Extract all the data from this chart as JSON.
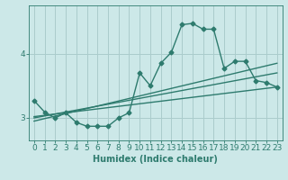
{
  "xlabel": "Humidex (Indice chaleur)",
  "ylabel": "",
  "bg_color": "#cce8e8",
  "grid_color": "#aacccc",
  "line_color": "#2e7b6e",
  "xlim": [
    -0.5,
    23.5
  ],
  "ylim": [
    2.65,
    4.75
  ],
  "yticks": [
    3,
    4
  ],
  "xticks": [
    0,
    1,
    2,
    3,
    4,
    5,
    6,
    7,
    8,
    9,
    10,
    11,
    12,
    13,
    14,
    15,
    16,
    17,
    18,
    19,
    20,
    21,
    22,
    23
  ],
  "series1_x": [
    0,
    1,
    2,
    3,
    4,
    5,
    6,
    7,
    8,
    9,
    10,
    11,
    12,
    13,
    14,
    15,
    16,
    17,
    18,
    19,
    20,
    21,
    22,
    23
  ],
  "series1_y": [
    3.27,
    3.09,
    3.0,
    3.08,
    2.93,
    2.87,
    2.87,
    2.87,
    3.0,
    3.08,
    3.7,
    3.5,
    3.85,
    4.02,
    4.45,
    4.47,
    4.38,
    4.38,
    3.77,
    3.88,
    3.88,
    3.58,
    3.55,
    3.48
  ],
  "series2_x": [
    0,
    23
  ],
  "series2_y": [
    3.02,
    3.48
  ],
  "series3_x": [
    0,
    23
  ],
  "series3_y": [
    3.0,
    3.7
  ],
  "series4_x": [
    0,
    23
  ],
  "series4_y": [
    2.95,
    3.85
  ],
  "marker": "D",
  "markersize": 2.5,
  "linewidth": 1.0,
  "xlabel_fontsize": 7,
  "tick_fontsize": 6.5
}
